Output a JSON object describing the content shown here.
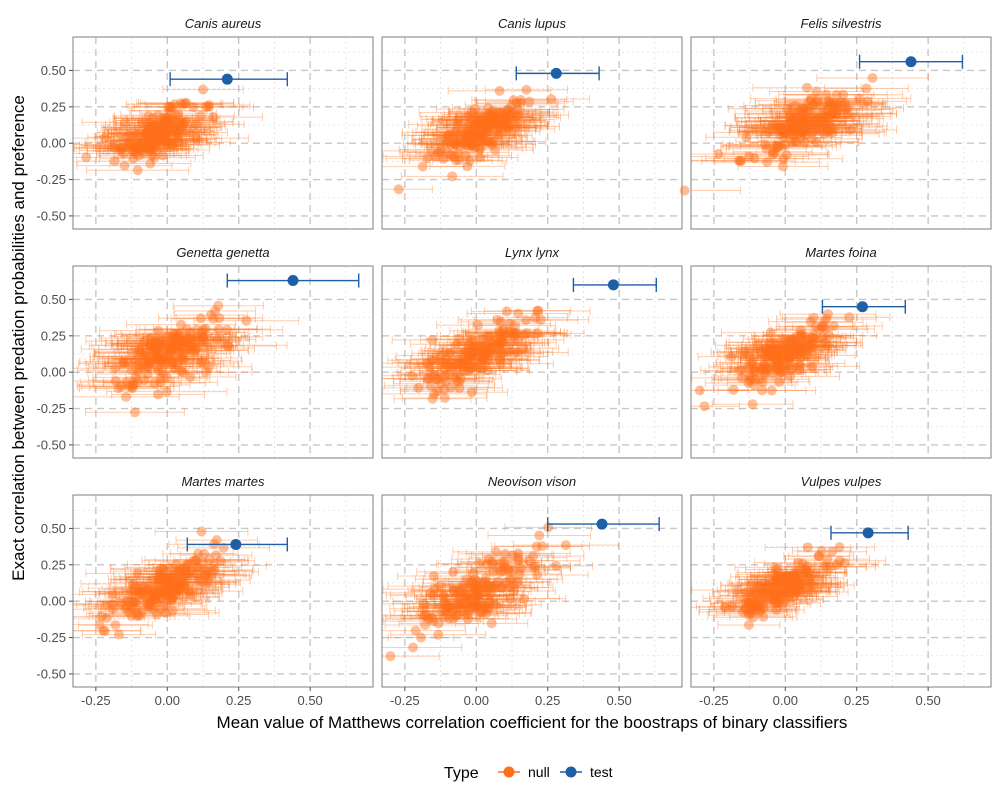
{
  "chart_data": {
    "type": "scatter",
    "xlabel": "Mean value of Matthews correlation coefficient for the boostraps of binary classifiers",
    "ylabel": "Exact correlation between predation probabilities and preference",
    "xlim": [
      -0.33,
      0.72
    ],
    "ylim": [
      -0.59,
      0.73
    ],
    "x_ticks": [
      -0.25,
      0.0,
      0.25,
      0.5
    ],
    "x_tick_labels": [
      "-0.25",
      "0.00",
      "0.25",
      "0.50"
    ],
    "y_ticks": [
      -0.5,
      -0.25,
      0.0,
      0.25,
      0.5
    ],
    "y_tick_labels": [
      "-0.50",
      "-0.25",
      "0.00",
      "0.25",
      "0.50"
    ],
    "grid": true,
    "legend": {
      "title": "Type",
      "position": "bottom",
      "entries": [
        {
          "label": "null",
          "color": "#FF6F1A"
        },
        {
          "label": "test",
          "color": "#1F5FA6"
        }
      ]
    },
    "panels": [
      {
        "title": "Canis aureus",
        "test": {
          "x": 0.21,
          "y": 0.44,
          "xmin": 0.01,
          "xmax": 0.42
        },
        "null_cloud": {
          "n": 160,
          "x_center": -0.04,
          "y_center": 0.06,
          "slope": 1.0,
          "x_sd": 0.07,
          "y_sd": 0.1,
          "err_half_width": 0.15
        }
      },
      {
        "title": "Canis lupus",
        "test": {
          "x": 0.28,
          "y": 0.48,
          "xmin": 0.14,
          "xmax": 0.43
        },
        "null_cloud": {
          "n": 160,
          "x_center": 0.0,
          "y_center": 0.07,
          "slope": 1.0,
          "x_sd": 0.08,
          "y_sd": 0.1,
          "err_half_width": 0.15
        }
      },
      {
        "title": "Felis silvestris",
        "test": {
          "x": 0.44,
          "y": 0.56,
          "xmin": 0.26,
          "xmax": 0.62
        },
        "null_cloud": {
          "n": 160,
          "x_center": 0.05,
          "y_center": 0.12,
          "slope": 0.95,
          "x_sd": 0.1,
          "y_sd": 0.1,
          "err_half_width": 0.17
        }
      },
      {
        "title": "Genetta genetta",
        "test": {
          "x": 0.44,
          "y": 0.63,
          "xmin": 0.21,
          "xmax": 0.67
        },
        "null_cloud": {
          "n": 160,
          "x_center": 0.0,
          "y_center": 0.13,
          "slope": 0.9,
          "x_sd": 0.1,
          "y_sd": 0.12,
          "err_half_width": 0.17
        }
      },
      {
        "title": "Lynx lynx",
        "test": {
          "x": 0.48,
          "y": 0.6,
          "xmin": 0.34,
          "xmax": 0.63
        },
        "null_cloud": {
          "n": 160,
          "x_center": 0.0,
          "y_center": 0.12,
          "slope": 1.05,
          "x_sd": 0.1,
          "y_sd": 0.1,
          "err_half_width": 0.15
        }
      },
      {
        "title": "Martes foina",
        "test": {
          "x": 0.27,
          "y": 0.45,
          "xmin": 0.13,
          "xmax": 0.42
        },
        "null_cloud": {
          "n": 160,
          "x_center": 0.0,
          "y_center": 0.12,
          "slope": 1.05,
          "x_sd": 0.09,
          "y_sd": 0.1,
          "err_half_width": 0.14
        }
      },
      {
        "title": "Martes martes",
        "test": {
          "x": 0.24,
          "y": 0.39,
          "xmin": 0.07,
          "xmax": 0.42
        },
        "null_cloud": {
          "n": 160,
          "x_center": 0.0,
          "y_center": 0.11,
          "slope": 0.95,
          "x_sd": 0.09,
          "y_sd": 0.1,
          "err_half_width": 0.15
        }
      },
      {
        "title": "Neovison vison",
        "test": {
          "x": 0.44,
          "y": 0.53,
          "xmin": 0.25,
          "xmax": 0.64
        },
        "null_cloud": {
          "n": 160,
          "x_center": 0.0,
          "y_center": 0.05,
          "slope": 1.05,
          "x_sd": 0.1,
          "y_sd": 0.13,
          "err_half_width": 0.15
        }
      },
      {
        "title": "Vulpes vulpes",
        "test": {
          "x": 0.29,
          "y": 0.47,
          "xmin": 0.16,
          "xmax": 0.43
        },
        "null_cloud": {
          "n": 160,
          "x_center": 0.0,
          "y_center": 0.1,
          "slope": 1.0,
          "x_sd": 0.08,
          "y_sd": 0.09,
          "err_half_width": 0.13
        }
      }
    ]
  }
}
